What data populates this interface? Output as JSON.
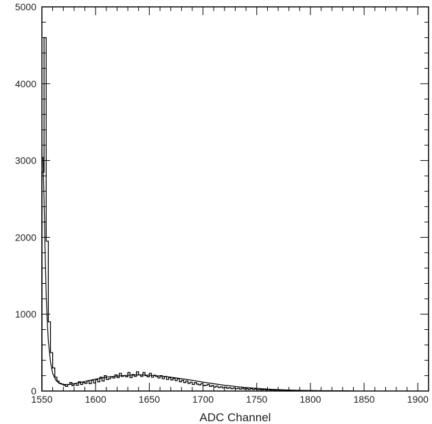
{
  "chart_data": {
    "type": "line",
    "title": "",
    "xlabel": "ADC Channel",
    "ylabel": "",
    "xlim": [
      1550,
      1910
    ],
    "ylim": [
      0,
      5000
    ],
    "grid": false,
    "x_ticks": [
      1550,
      1600,
      1650,
      1700,
      1750,
      1800,
      1850,
      1900
    ],
    "y_ticks": [
      0,
      1000,
      2000,
      3000,
      4000,
      5000
    ],
    "series": [
      {
        "style": "histogram",
        "bin_width": 2,
        "x": [
          1550,
          1552,
          1554,
          1556,
          1558,
          1560,
          1562,
          1564,
          1566,
          1568,
          1570,
          1572,
          1574,
          1576,
          1578,
          1580,
          1582,
          1584,
          1586,
          1588,
          1590,
          1592,
          1594,
          1596,
          1598,
          1600,
          1602,
          1604,
          1606,
          1608,
          1610,
          1612,
          1614,
          1616,
          1618,
          1620,
          1622,
          1624,
          1626,
          1628,
          1630,
          1632,
          1634,
          1636,
          1638,
          1640,
          1642,
          1644,
          1646,
          1648,
          1650,
          1652,
          1654,
          1656,
          1658,
          1660,
          1662,
          1664,
          1666,
          1668,
          1670,
          1672,
          1674,
          1676,
          1678,
          1680,
          1682,
          1684,
          1686,
          1688,
          1690,
          1692,
          1694,
          1696,
          1698,
          1700,
          1702,
          1704,
          1706,
          1708,
          1710,
          1712,
          1714,
          1716,
          1718,
          1720,
          1722,
          1724,
          1726,
          1728,
          1730,
          1732,
          1734,
          1736,
          1738,
          1740,
          1742,
          1744,
          1746,
          1748,
          1750,
          1752,
          1754,
          1756,
          1758,
          1760,
          1762,
          1764,
          1766,
          1768,
          1770,
          1772,
          1774,
          1776,
          1778,
          1780,
          1782,
          1784,
          1786,
          1788,
          1790,
          1792,
          1794,
          1796,
          1798,
          1800,
          1802,
          1804,
          1806,
          1808,
          1810,
          1812,
          1814,
          1816,
          1818,
          1820,
          1822,
          1824,
          1826,
          1828,
          1830,
          1832,
          1834
        ],
        "values": [
          2850,
          4600,
          1950,
          900,
          500,
          300,
          180,
          130,
          100,
          90,
          75,
          60,
          85,
          110,
          70,
          95,
          75,
          120,
          85,
          110,
          100,
          130,
          95,
          140,
          105,
          150,
          120,
          180,
          130,
          200,
          150,
          160,
          185,
          170,
          210,
          175,
          230,
          190,
          200,
          185,
          240,
          175,
          215,
          190,
          250,
          210,
          190,
          240,
          200,
          185,
          230,
          180,
          205,
          190,
          170,
          200,
          160,
          190,
          150,
          175,
          145,
          165,
          135,
          160,
          120,
          140,
          110,
          130,
          100,
          115,
          85,
          110,
          90,
          80,
          95,
          70,
          75,
          85,
          60,
          70,
          50,
          65,
          45,
          55,
          40,
          50,
          35,
          45,
          30,
          40,
          30,
          35,
          25,
          35,
          25,
          30,
          20,
          30,
          20,
          25,
          18,
          22,
          15,
          20,
          15,
          18,
          12,
          16,
          10,
          14,
          10,
          12,
          8,
          10,
          8,
          10,
          6,
          8,
          6,
          8,
          5,
          7,
          5,
          6,
          4,
          6,
          4,
          5,
          3,
          5,
          3,
          4,
          3,
          4,
          2,
          3,
          2,
          3,
          2,
          3,
          2,
          2,
          2
        ]
      },
      {
        "style": "fit-curve",
        "x": [
          1551,
          1552,
          1553,
          1554,
          1555,
          1556,
          1558,
          1560,
          1563,
          1566,
          1570,
          1575,
          1580,
          1590,
          1600,
          1610,
          1620,
          1630,
          1640,
          1650,
          1660,
          1670,
          1680,
          1690,
          1700,
          1710,
          1720,
          1730,
          1740,
          1750,
          1760,
          1770,
          1780,
          1790,
          1800,
          1810,
          1820,
          1830,
          1840
        ],
        "values": [
          3050,
          2500,
          1800,
          1250,
          900,
          650,
          380,
          230,
          140,
          100,
          85,
          85,
          95,
          125,
          155,
          180,
          195,
          205,
          210,
          205,
          195,
          180,
          160,
          140,
          115,
          95,
          75,
          60,
          45,
          35,
          25,
          18,
          13,
          9,
          6,
          4,
          3,
          2,
          1
        ]
      }
    ]
  }
}
